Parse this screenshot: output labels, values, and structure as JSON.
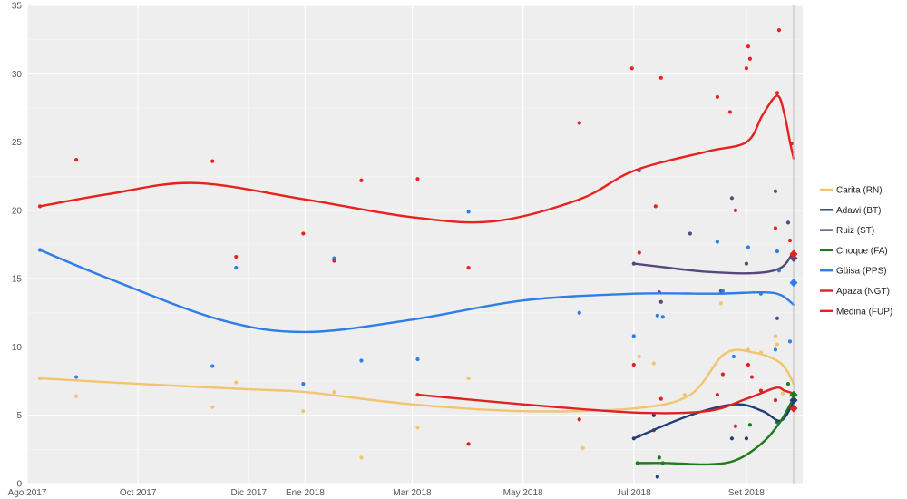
{
  "chart_data": {
    "type": "line",
    "x_axis": {
      "type": "date",
      "range": [
        "2017-08-01",
        "2018-10-02"
      ],
      "ticks": [
        {
          "date": "2017-08-01",
          "label": "Ago 2017"
        },
        {
          "date": "2017-10-01",
          "label": "Oct 2017"
        },
        {
          "date": "2017-12-01",
          "label": "Dic 2017"
        },
        {
          "date": "2018-01-01",
          "label": "Ene 2018"
        },
        {
          "date": "2018-03-01",
          "label": "Mar 2018"
        },
        {
          "date": "2018-05-01",
          "label": "May 2018"
        },
        {
          "date": "2018-07-01",
          "label": "Jul 2018"
        },
        {
          "date": "2018-09-01",
          "label": "Set 2018"
        }
      ]
    },
    "y_axis": {
      "range": [
        0,
        35
      ],
      "ticks": [
        0,
        5,
        10,
        15,
        20,
        25,
        30,
        35
      ]
    },
    "grid": true,
    "legend_position": "right",
    "event_line": "2018-09-27",
    "series": [
      {
        "name": "Carita (RN)",
        "color": "#f2c46d",
        "trend": [
          [
            "2017-08-08",
            7.7
          ],
          [
            "2017-10-01",
            7.3
          ],
          [
            "2017-12-01",
            6.9
          ],
          [
            "2018-01-01",
            6.7
          ],
          [
            "2018-03-01",
            5.8
          ],
          [
            "2018-05-01",
            5.3
          ],
          [
            "2018-07-01",
            5.5
          ],
          [
            "2018-08-01",
            6.5
          ],
          [
            "2018-08-20",
            9.5
          ],
          [
            "2018-09-05",
            9.6
          ],
          [
            "2018-09-20",
            8.8
          ],
          [
            "2018-09-27",
            7.3
          ]
        ],
        "points": [
          [
            "2017-08-08",
            7.7
          ],
          [
            "2017-08-28",
            6.4
          ],
          [
            "2017-11-11",
            5.6
          ],
          [
            "2017-11-24",
            7.4
          ],
          [
            "2017-12-31",
            5.3
          ],
          [
            "2018-01-17",
            6.7
          ],
          [
            "2018-02-01",
            1.9
          ],
          [
            "2018-03-04",
            4.1
          ],
          [
            "2018-04-01",
            7.7
          ],
          [
            "2018-06-03",
            2.6
          ],
          [
            "2018-07-04",
            9.3
          ],
          [
            "2018-07-12",
            8.8
          ],
          [
            "2018-07-29",
            6.5
          ],
          [
            "2018-08-18",
            13.2
          ],
          [
            "2018-09-02",
            9.8
          ],
          [
            "2018-09-09",
            9.6
          ],
          [
            "2018-09-17",
            10.8
          ],
          [
            "2018-09-18",
            10.2
          ],
          [
            "2018-09-21",
            6.6
          ]
        ],
        "final": 6.5
      },
      {
        "name": "Adawi (BT)",
        "color": "#1f3f7a",
        "trend": [
          [
            "2018-07-01",
            3.3
          ],
          [
            "2018-08-01",
            5.0
          ],
          [
            "2018-08-26",
            5.8
          ],
          [
            "2018-09-10",
            5.3
          ],
          [
            "2018-09-20",
            4.6
          ],
          [
            "2018-09-27",
            6.0
          ]
        ],
        "points": [
          [
            "2018-07-01",
            3.3
          ],
          [
            "2018-07-12",
            5.0
          ],
          [
            "2018-07-14",
            0.5
          ],
          [
            "2018-08-24",
            3.3
          ],
          [
            "2018-09-01",
            3.3
          ],
          [
            "2018-09-19",
            4.5
          ]
        ],
        "final": 6.1
      },
      {
        "name": "Ruiz (ST)",
        "color": "#56487a",
        "trend": [
          [
            "2018-07-01",
            16.1
          ],
          [
            "2018-07-20",
            15.8
          ],
          [
            "2018-08-10",
            15.5
          ],
          [
            "2018-09-05",
            15.4
          ],
          [
            "2018-09-20",
            15.8
          ],
          [
            "2018-09-27",
            17.0
          ]
        ],
        "points": [
          [
            "2018-07-01",
            16.1
          ],
          [
            "2018-07-15",
            14.0
          ],
          [
            "2018-07-16",
            13.3
          ],
          [
            "2018-08-01",
            18.3
          ],
          [
            "2018-08-18",
            14.1
          ],
          [
            "2018-08-24",
            20.9
          ],
          [
            "2018-09-01",
            16.1
          ],
          [
            "2018-09-17",
            21.4
          ],
          [
            "2018-09-18",
            12.1
          ],
          [
            "2018-09-24",
            19.1
          ]
        ],
        "final": 16.5
      },
      {
        "name": "Choque (FA)",
        "color": "#1e7b1e",
        "trend": [
          [
            "2018-07-03",
            1.5
          ],
          [
            "2018-07-20",
            1.5
          ],
          [
            "2018-08-10",
            1.4
          ],
          [
            "2018-08-26",
            1.7
          ],
          [
            "2018-09-10",
            3.0
          ],
          [
            "2018-09-20",
            4.6
          ],
          [
            "2018-09-27",
            6.3
          ]
        ],
        "points": [
          [
            "2018-07-03",
            1.5
          ],
          [
            "2018-07-15",
            1.9
          ],
          [
            "2018-07-17",
            1.5
          ],
          [
            "2018-09-03",
            4.3
          ],
          [
            "2018-09-18",
            4.5
          ],
          [
            "2018-09-24",
            7.3
          ]
        ],
        "final": 6.5
      },
      {
        "name": "Güisa (PPS)",
        "color": "#2e7de9",
        "trend": [
          [
            "2017-08-08",
            17.1
          ],
          [
            "2017-09-15",
            15.0
          ],
          [
            "2017-11-15",
            12.0
          ],
          [
            "2018-01-01",
            11.1
          ],
          [
            "2018-03-01",
            12.0
          ],
          [
            "2018-05-01",
            13.4
          ],
          [
            "2018-07-01",
            13.9
          ],
          [
            "2018-08-15",
            13.9
          ],
          [
            "2018-09-10",
            14.0
          ],
          [
            "2018-09-20",
            13.8
          ],
          [
            "2018-09-27",
            13.1
          ]
        ],
        "points": [
          [
            "2017-08-08",
            17.1
          ],
          [
            "2017-08-28",
            7.8
          ],
          [
            "2017-11-11",
            8.6
          ],
          [
            "2017-11-24",
            15.8
          ],
          [
            "2017-12-31",
            7.3
          ],
          [
            "2018-01-17",
            16.5
          ],
          [
            "2018-02-01",
            9.0
          ],
          [
            "2018-03-04",
            9.1
          ],
          [
            "2018-04-01",
            19.9
          ],
          [
            "2018-06-01",
            12.5
          ],
          [
            "2018-07-01",
            10.8
          ],
          [
            "2018-07-04",
            22.9
          ],
          [
            "2018-07-14",
            12.3
          ],
          [
            "2018-07-17",
            12.2
          ],
          [
            "2018-08-16",
            17.7
          ],
          [
            "2018-08-19",
            14.1
          ],
          [
            "2018-08-25",
            9.3
          ],
          [
            "2018-09-02",
            17.3
          ],
          [
            "2018-09-09",
            13.9
          ],
          [
            "2018-09-17",
            9.8
          ],
          [
            "2018-09-18",
            17.0
          ],
          [
            "2018-09-19",
            15.6
          ],
          [
            "2018-09-25",
            10.4
          ]
        ],
        "final": 14.7
      },
      {
        "name": "Apaza (NGT)",
        "color": "#dd2222",
        "trend": [
          [
            "2018-03-04",
            6.5
          ],
          [
            "2018-05-01",
            5.8
          ],
          [
            "2018-07-01",
            5.2
          ],
          [
            "2018-08-10",
            5.3
          ],
          [
            "2018-09-01",
            6.2
          ],
          [
            "2018-09-17",
            7.0
          ],
          [
            "2018-09-22",
            6.8
          ],
          [
            "2018-09-27",
            6.6
          ]
        ],
        "points": [
          [
            "2018-03-04",
            6.5
          ],
          [
            "2018-04-01",
            2.9
          ],
          [
            "2018-06-01",
            4.7
          ],
          [
            "2018-07-01",
            8.7
          ],
          [
            "2018-07-04",
            3.5
          ],
          [
            "2018-07-12",
            3.9
          ],
          [
            "2018-07-16",
            6.2
          ],
          [
            "2018-08-16",
            6.5
          ],
          [
            "2018-08-19",
            8.0
          ],
          [
            "2018-08-26",
            4.2
          ],
          [
            "2018-09-02",
            8.7
          ],
          [
            "2018-09-04",
            7.8
          ],
          [
            "2018-09-09",
            6.8
          ],
          [
            "2018-09-17",
            6.1
          ]
        ],
        "final": 5.5
      },
      {
        "name": "Medina (FUP)",
        "color": "#e8211c",
        "trend": [
          [
            "2017-08-08",
            20.3
          ],
          [
            "2017-09-15",
            21.2
          ],
          [
            "2017-11-01",
            22.0
          ],
          [
            "2018-01-01",
            20.8
          ],
          [
            "2018-03-01",
            19.5
          ],
          [
            "2018-04-15",
            19.2
          ],
          [
            "2018-06-01",
            20.8
          ],
          [
            "2018-07-01",
            22.9
          ],
          [
            "2018-08-10",
            24.3
          ],
          [
            "2018-09-01",
            25.0
          ],
          [
            "2018-09-10",
            27.0
          ],
          [
            "2018-09-18",
            28.4
          ],
          [
            "2018-09-22",
            27.0
          ],
          [
            "2018-09-25",
            25.0
          ],
          [
            "2018-09-27",
            23.8
          ]
        ],
        "points": [
          [
            "2017-08-08",
            20.3
          ],
          [
            "2017-08-28",
            23.7
          ],
          [
            "2017-11-11",
            23.6
          ],
          [
            "2017-11-24",
            16.6
          ],
          [
            "2017-12-31",
            18.3
          ],
          [
            "2018-01-17",
            16.3
          ],
          [
            "2018-02-01",
            22.2
          ],
          [
            "2018-03-04",
            22.3
          ],
          [
            "2018-04-01",
            15.8
          ],
          [
            "2018-06-01",
            26.4
          ],
          [
            "2018-06-30",
            30.4
          ],
          [
            "2018-07-04",
            16.9
          ],
          [
            "2018-07-13",
            20.3
          ],
          [
            "2018-07-16",
            29.7
          ],
          [
            "2018-08-16",
            28.3
          ],
          [
            "2018-08-23",
            27.2
          ],
          [
            "2018-08-26",
            20.0
          ],
          [
            "2018-09-01",
            30.4
          ],
          [
            "2018-09-02",
            32.0
          ],
          [
            "2018-09-03",
            31.1
          ],
          [
            "2018-09-17",
            18.7
          ],
          [
            "2018-09-18",
            28.6
          ],
          [
            "2018-09-19",
            33.2
          ],
          [
            "2018-09-25",
            17.8
          ],
          [
            "2018-09-26",
            24.9
          ]
        ],
        "final": 16.8
      }
    ]
  }
}
